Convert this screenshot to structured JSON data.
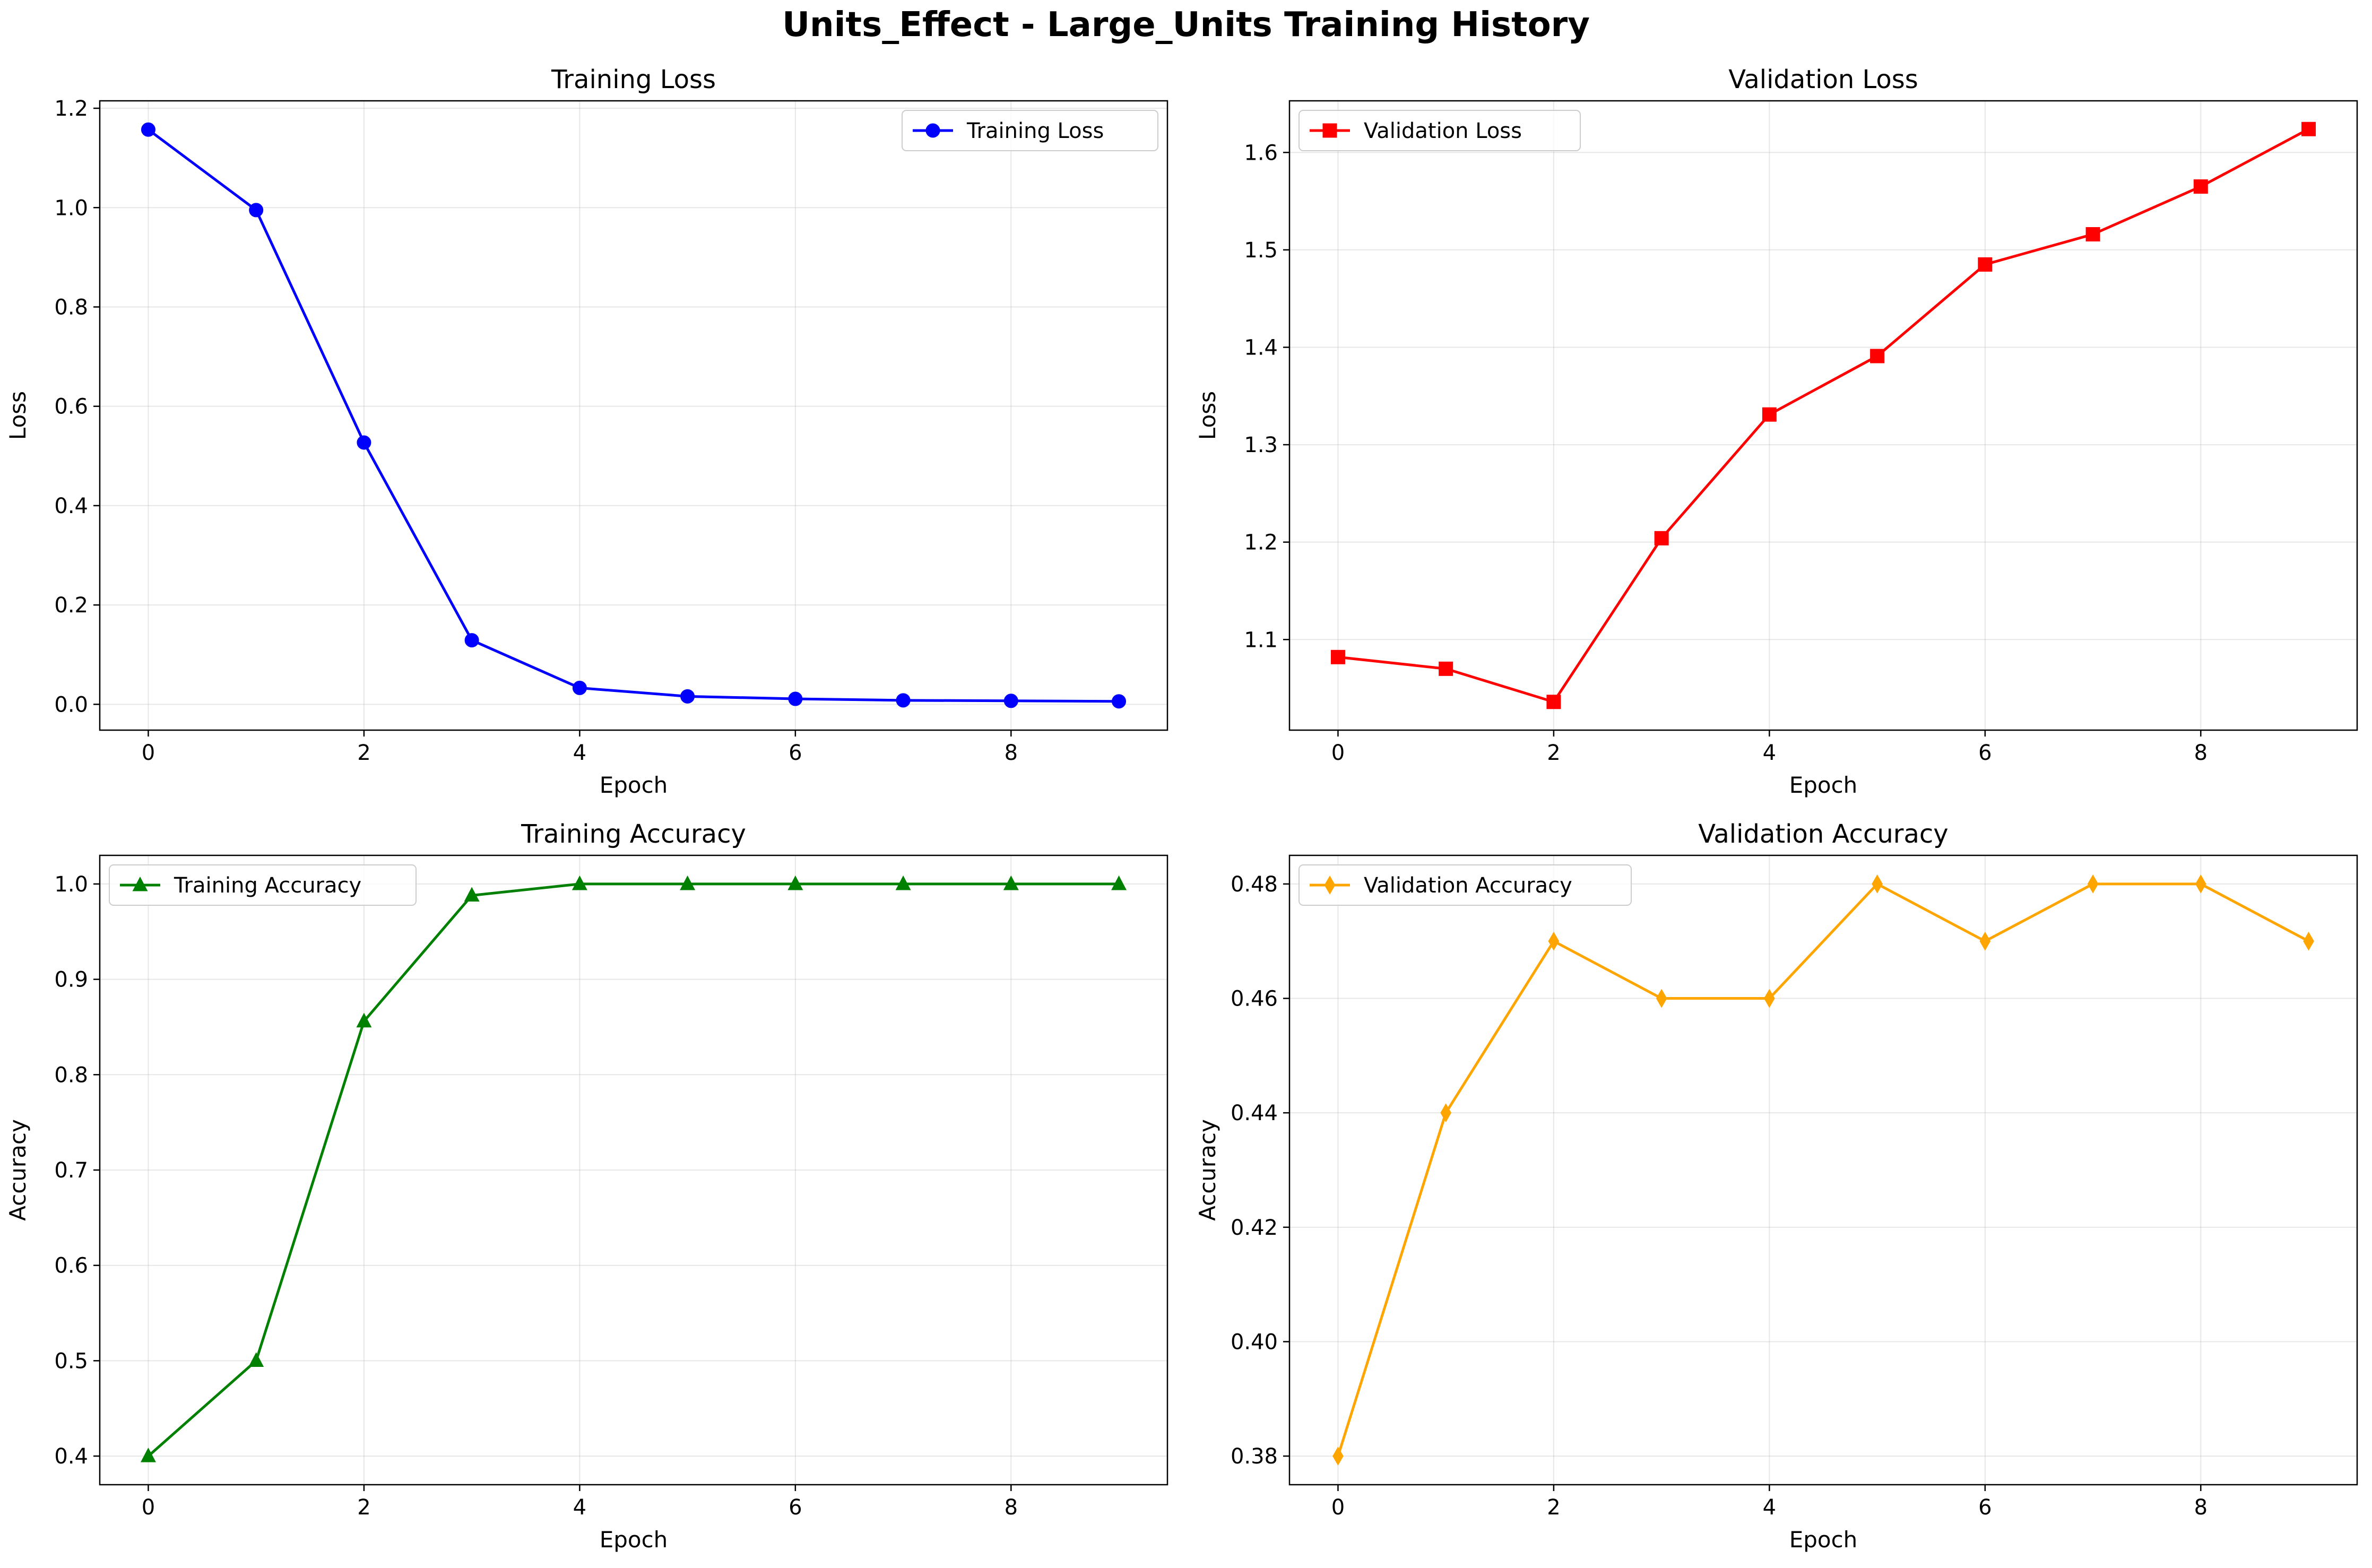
{
  "figure": {
    "title": "Units_Effect - Large_Units Training History"
  },
  "chart_data": [
    {
      "type": "line",
      "title": "Training Loss",
      "xlabel": "Epoch",
      "ylabel": "Loss",
      "x": [
        0,
        1,
        2,
        3,
        4,
        5,
        6,
        7,
        8,
        9
      ],
      "series": [
        {
          "name": "Training Loss",
          "values": [
            1.157,
            0.995,
            0.527,
            0.129,
            0.033,
            0.016,
            0.011,
            0.008,
            0.007,
            0.006
          ],
          "color": "#0000ff",
          "marker": "circle"
        }
      ],
      "xlim": [
        -0.45,
        9.45
      ],
      "ylim": [
        -0.052,
        1.215
      ],
      "xticks": [
        0,
        2,
        4,
        6,
        8
      ],
      "yticks": [
        0.0,
        0.2,
        0.4,
        0.6,
        0.8,
        1.0,
        1.2
      ],
      "ytick_labels": [
        "0.0",
        "0.2",
        "0.4",
        "0.6",
        "0.8",
        "1.0",
        "1.2"
      ],
      "grid": true,
      "legend": "upper-right"
    },
    {
      "type": "line",
      "title": "Validation Loss",
      "xlabel": "Epoch",
      "ylabel": "Loss",
      "x": [
        0,
        1,
        2,
        3,
        4,
        5,
        6,
        7,
        8,
        9
      ],
      "series": [
        {
          "name": "Validation Loss",
          "values": [
            1.082,
            1.07,
            1.036,
            1.204,
            1.331,
            1.391,
            1.485,
            1.516,
            1.565,
            1.624
          ],
          "color": "#ff0000",
          "marker": "square"
        }
      ],
      "xlim": [
        -0.45,
        9.45
      ],
      "ylim": [
        1.007,
        1.653
      ],
      "xticks": [
        0,
        2,
        4,
        6,
        8
      ],
      "yticks": [
        1.1,
        1.2,
        1.3,
        1.4,
        1.5,
        1.6
      ],
      "ytick_labels": [
        "1.1",
        "1.2",
        "1.3",
        "1.4",
        "1.5",
        "1.6"
      ],
      "grid": true,
      "legend": "upper-left"
    },
    {
      "type": "line",
      "title": "Training Accuracy",
      "xlabel": "Epoch",
      "ylabel": "Accuracy",
      "x": [
        0,
        1,
        2,
        3,
        4,
        5,
        6,
        7,
        8,
        9
      ],
      "series": [
        {
          "name": "Training Accuracy",
          "values": [
            0.4,
            0.5,
            0.856,
            0.988,
            1.0,
            1.0,
            1.0,
            1.0,
            1.0,
            1.0
          ],
          "color": "#008000",
          "marker": "triangle"
        }
      ],
      "xlim": [
        -0.45,
        9.45
      ],
      "ylim": [
        0.37,
        1.03
      ],
      "xticks": [
        0,
        2,
        4,
        6,
        8
      ],
      "yticks": [
        0.4,
        0.5,
        0.6,
        0.7,
        0.8,
        0.9,
        1.0
      ],
      "ytick_labels": [
        "0.4",
        "0.5",
        "0.6",
        "0.7",
        "0.8",
        "0.9",
        "1.0"
      ],
      "grid": true,
      "legend": "upper-left"
    },
    {
      "type": "line",
      "title": "Validation Accuracy",
      "xlabel": "Epoch",
      "ylabel": "Accuracy",
      "x": [
        0,
        1,
        2,
        3,
        4,
        5,
        6,
        7,
        8,
        9
      ],
      "series": [
        {
          "name": "Validation Accuracy",
          "values": [
            0.38,
            0.44,
            0.47,
            0.46,
            0.46,
            0.48,
            0.47,
            0.48,
            0.48,
            0.47
          ],
          "color": "#ffa500",
          "marker": "diamond"
        }
      ],
      "xlim": [
        -0.45,
        9.45
      ],
      "ylim": [
        0.375,
        0.485
      ],
      "xticks": [
        0,
        2,
        4,
        6,
        8
      ],
      "yticks": [
        0.38,
        0.4,
        0.42,
        0.44,
        0.46,
        0.48
      ],
      "ytick_labels": [
        "0.38",
        "0.40",
        "0.42",
        "0.44",
        "0.46",
        "0.48"
      ],
      "grid": true,
      "legend": "upper-left"
    }
  ]
}
